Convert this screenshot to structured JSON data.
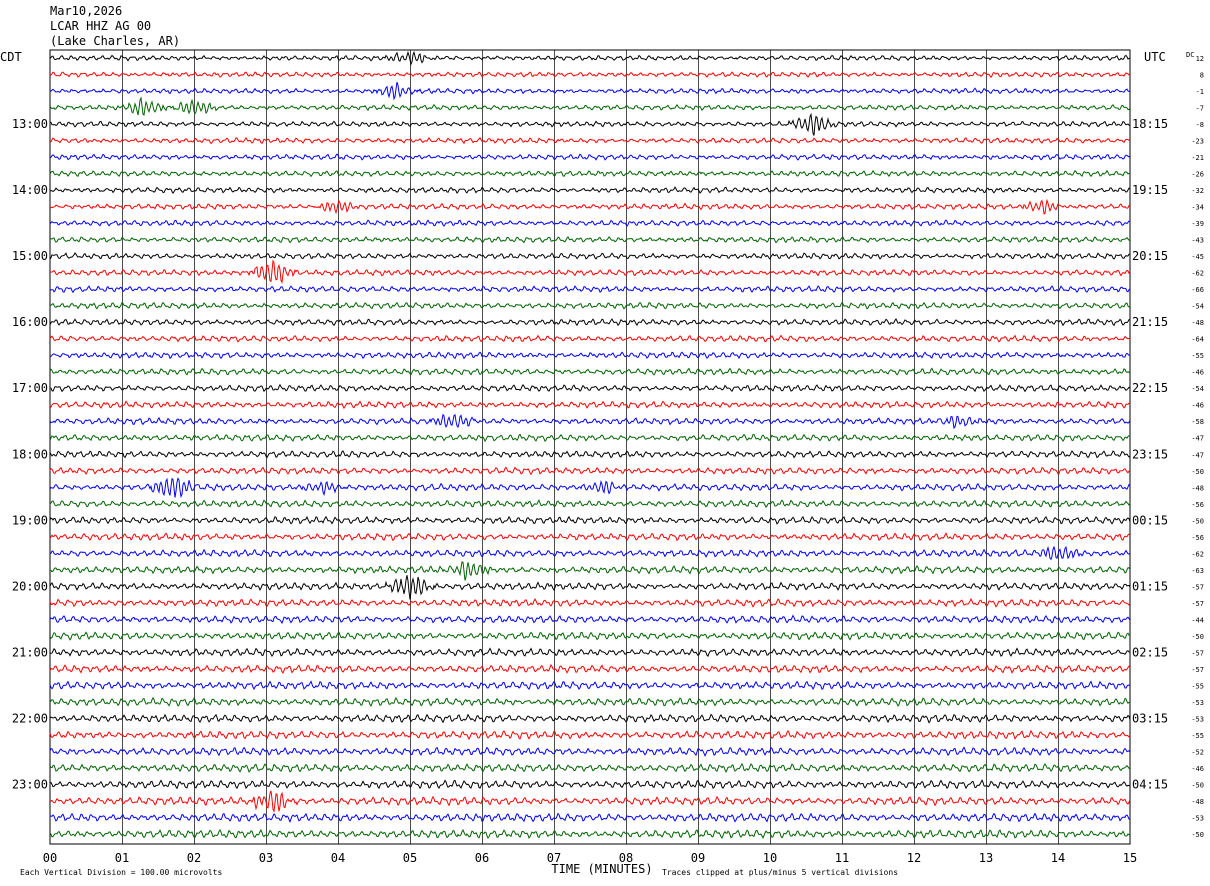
{
  "header": {
    "date": "Mar10,2026",
    "station": "LCAR HHZ AG 00",
    "location": "(Lake Charles, AR)"
  },
  "chart_data": {
    "type": "line",
    "title": "Mar10,2026",
    "left_timezone": "CDT",
    "right_timezone": "UTC",
    "dc_label": "DC",
    "xlabel": "TIME (MINUTES)",
    "x_ticks": [
      "00",
      "01",
      "02",
      "03",
      "04",
      "05",
      "06",
      "07",
      "08",
      "09",
      "10",
      "11",
      "12",
      "13",
      "14",
      "15"
    ],
    "xlim": [
      0,
      15
    ],
    "left_hour_labels": [
      "13:00",
      "14:00",
      "15:00",
      "16:00",
      "17:00",
      "18:00",
      "19:00",
      "20:00",
      "21:00",
      "22:00",
      "23:00"
    ],
    "right_hour_labels": [
      "18:15",
      "19:15",
      "20:15",
      "21:15",
      "22:15",
      "23:15",
      "00:15",
      "01:15",
      "02:15",
      "03:15",
      "04:15"
    ],
    "dc_offsets": [
      12,
      8,
      -1,
      -7,
      -8,
      -23,
      -21,
      -26,
      -32,
      -34,
      -39,
      -43,
      -45,
      -62,
      -66,
      -54,
      -48,
      -64,
      -55,
      -46,
      -54,
      -46,
      -58,
      -47,
      -47,
      -50,
      -48,
      -56,
      -50,
      -56,
      -62,
      -63,
      -57,
      -57,
      -44,
      -50,
      -57,
      -57,
      -55,
      -53,
      -53,
      -55,
      -52,
      -46,
      -50,
      -48,
      -53,
      -50
    ],
    "trace_colors": [
      "#000000",
      "#ff0000",
      "#0000ff",
      "#006400"
    ],
    "grid": true,
    "footer_left": "Each Vertical Division =  100.00 microvolts",
    "footer_right": "Traces clipped at plus/minus 5 vertical divisions",
    "events": [
      {
        "trace": 0,
        "minute": 5.0,
        "amp": 1.4
      },
      {
        "trace": 2,
        "minute": 4.8,
        "amp": 1.6
      },
      {
        "trace": 3,
        "minute": 1.3,
        "amp": 2.0
      },
      {
        "trace": 3,
        "minute": 2.0,
        "amp": 1.5
      },
      {
        "trace": 4,
        "minute": 10.6,
        "amp": 2.2
      },
      {
        "trace": 9,
        "minute": 4.0,
        "amp": 1.3
      },
      {
        "trace": 9,
        "minute": 13.8,
        "amp": 1.4
      },
      {
        "trace": 13,
        "minute": 3.1,
        "amp": 2.8
      },
      {
        "trace": 22,
        "minute": 5.6,
        "amp": 1.6
      },
      {
        "trace": 22,
        "minute": 12.6,
        "amp": 1.3
      },
      {
        "trace": 26,
        "minute": 1.7,
        "amp": 2.6
      },
      {
        "trace": 26,
        "minute": 3.8,
        "amp": 1.3
      },
      {
        "trace": 26,
        "minute": 7.7,
        "amp": 1.3
      },
      {
        "trace": 30,
        "minute": 14.0,
        "amp": 1.6
      },
      {
        "trace": 31,
        "minute": 5.8,
        "amp": 1.9
      },
      {
        "trace": 32,
        "minute": 5.0,
        "amp": 2.6
      },
      {
        "trace": 45,
        "minute": 3.1,
        "amp": 2.4
      }
    ]
  }
}
